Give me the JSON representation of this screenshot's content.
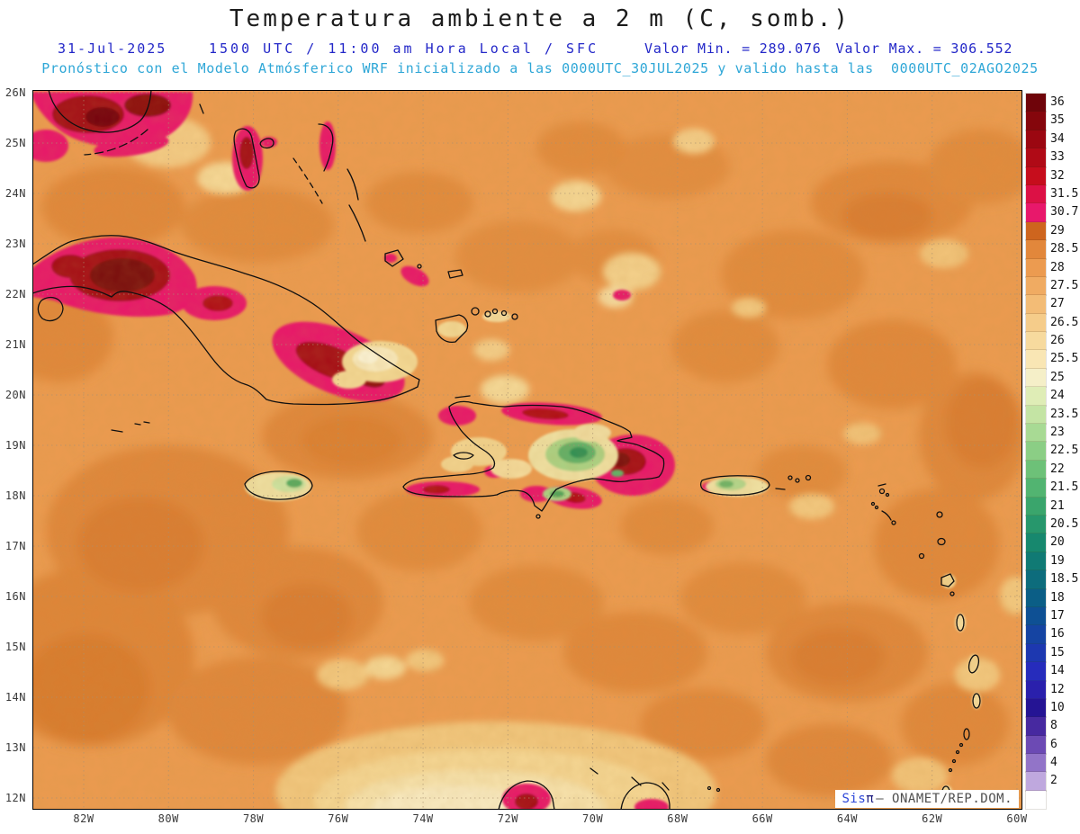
{
  "header": {
    "title": "Temperatura ambiente a 2 m (C, somb.)",
    "date": "31-Jul-2025",
    "time_info": "1500 UTC / 11:00 am Hora Local / SFC",
    "min_label": "Valor Min. = 289.076",
    "max_label": "Valor Max. = 306.552",
    "forecast_info": "Pronóstico con el Modelo Atmósferico WRF inicializado a las 0000UTC_30JUL2025 y valido hasta las  0000UTC_02AGO2025"
  },
  "map": {
    "lat_labels": [
      "26N",
      "25N",
      "24N",
      "23N",
      "22N",
      "21N",
      "20N",
      "19N",
      "18N",
      "17N",
      "16N",
      "15N",
      "14N",
      "13N",
      "12N"
    ],
    "lon_labels": [
      "82W",
      "80W",
      "78W",
      "76W",
      "74W",
      "72W",
      "70W",
      "68W",
      "66W",
      "64W",
      "62W",
      "60W"
    ]
  },
  "legend": {
    "entries": [
      {
        "label": "36",
        "color": "#6F040A"
      },
      {
        "label": "35",
        "color": "#85060C"
      },
      {
        "label": "34",
        "color": "#9B0711"
      },
      {
        "label": "33",
        "color": "#B00A16"
      },
      {
        "label": "32",
        "color": "#C60D1C"
      },
      {
        "label": "31.5",
        "color": "#DC1145"
      },
      {
        "label": "30.7",
        "color": "#E8186B"
      },
      {
        "label": "29",
        "color": "#CE651E"
      },
      {
        "label": "28.5",
        "color": "#E2873B"
      },
      {
        "label": "28",
        "color": "#EC9B50"
      },
      {
        "label": "27.5",
        "color": "#F0AB62"
      },
      {
        "label": "27",
        "color": "#F3BC76"
      },
      {
        "label": "26.5",
        "color": "#F5CC8A"
      },
      {
        "label": "26",
        "color": "#F7DA9E"
      },
      {
        "label": "25.5",
        "color": "#F9E6B4"
      },
      {
        "label": "25",
        "color": "#F5EFC8"
      },
      {
        "label": "24",
        "color": "#DFEDB6"
      },
      {
        "label": "23.5",
        "color": "#C4E4A4"
      },
      {
        "label": "23",
        "color": "#A8DA94"
      },
      {
        "label": "22.5",
        "color": "#8BCE85"
      },
      {
        "label": "22",
        "color": "#6DC178"
      },
      {
        "label": "21.5",
        "color": "#52B471"
      },
      {
        "label": "21",
        "color": "#3AA56C"
      },
      {
        "label": "20.5",
        "color": "#27976C"
      },
      {
        "label": "20",
        "color": "#17886E"
      },
      {
        "label": "19",
        "color": "#107A74"
      },
      {
        "label": "18.5",
        "color": "#0D6C7C"
      },
      {
        "label": "18",
        "color": "#0B5E86"
      },
      {
        "label": "17",
        "color": "#0E5094"
      },
      {
        "label": "16",
        "color": "#1544A2"
      },
      {
        "label": "15",
        "color": "#1D38B0"
      },
      {
        "label": "14",
        "color": "#262CBC"
      },
      {
        "label": "12",
        "color": "#2A20AC"
      },
      {
        "label": "10",
        "color": "#251494"
      },
      {
        "label": "8",
        "color": "#4729A0"
      },
      {
        "label": "6",
        "color": "#6C4AB4"
      },
      {
        "label": "4",
        "color": "#9274C8"
      },
      {
        "label": "2",
        "color": "#BFA8DE"
      }
    ],
    "bottom_color": "#FFFFFF"
  },
  "watermark": {
    "brand_prefix": "Sis",
    "brand_symbol": "π",
    "org_text": "– ONAMET/REP.DOM."
  },
  "chart_data": {
    "type": "heatmap",
    "title": "Temperatura ambiente a 2 m (C, somb.)",
    "units": "C",
    "valor_min": 289.076,
    "valor_max": 306.552,
    "contour_levels": [
      2,
      4,
      6,
      8,
      10,
      12,
      14,
      15,
      16,
      17,
      18,
      18.5,
      19,
      20,
      20.5,
      21,
      21.5,
      22,
      22.5,
      23,
      23.5,
      24,
      25,
      25.5,
      26,
      26.5,
      27,
      27.5,
      28,
      28.5,
      29,
      30.7,
      31.5,
      32,
      33,
      34,
      35,
      36
    ],
    "lat_ticks": [
      "12N",
      "13N",
      "14N",
      "15N",
      "16N",
      "17N",
      "18N",
      "19N",
      "20N",
      "21N",
      "22N",
      "23N",
      "24N",
      "25N",
      "26N"
    ],
    "lon_ticks": [
      "82W",
      "80W",
      "78W",
      "76W",
      "74W",
      "72W",
      "70W",
      "68W",
      "66W",
      "64W",
      "62W",
      "60W"
    ]
  }
}
